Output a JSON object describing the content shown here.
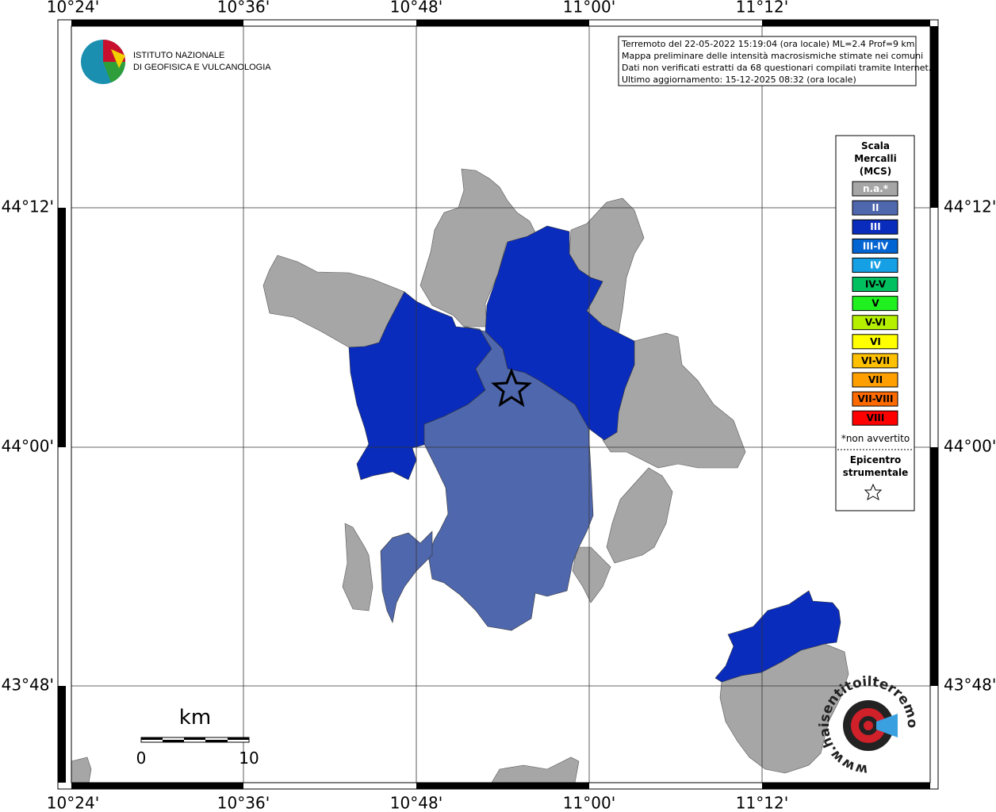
{
  "map": {
    "lon_labels": [
      "10°24'",
      "10°36'",
      "10°48'",
      "11°00'",
      "11°12'"
    ],
    "lat_labels": [
      "44°12'",
      "44°00'",
      "43°48'"
    ],
    "logo": {
      "line1": "ISTITUTO NAZIONALE",
      "line2": "DI GEOFISICA E VULCANOLOGIA"
    },
    "info": [
      "Terremoto del 22-05-2022 15:19:04 (ora locale) ML=2.4 Prof=9 km",
      "Mappa preliminare delle intensità macrosismiche stimate nei comuni",
      "Dati non verificati estratti da 68 questionari compilati tramite Internet.",
      "Ultimo aggiornamento: 15-12-2025 08:32 (ora locale)"
    ],
    "legend": {
      "title": [
        "Scala",
        "Mercalli",
        "(MCS)"
      ],
      "levels": [
        {
          "label": "n.a.*",
          "color": "#a6a6a6"
        },
        {
          "label": "II",
          "color": "#4f67ad"
        },
        {
          "label": "III",
          "color": "#0a2cbc"
        },
        {
          "label": "III-IV",
          "color": "#0064d2"
        },
        {
          "label": "IV",
          "color": "#15a0e6"
        },
        {
          "label": "IV-V",
          "color": "#00c060"
        },
        {
          "label": "V",
          "color": "#20f020"
        },
        {
          "label": "V-VI",
          "color": "#b4f000"
        },
        {
          "label": "VI",
          "color": "#ffff00"
        },
        {
          "label": "VI-VII",
          "color": "#ffc000"
        },
        {
          "label": "VII",
          "color": "#ffa000"
        },
        {
          "label": "VII-VIII",
          "color": "#ff6a00"
        },
        {
          "label": "VIII",
          "color": "#ff0000"
        }
      ],
      "note": "*non avvertito",
      "epicenter": [
        "Epicentro",
        "strumentale"
      ]
    },
    "scale_bar": {
      "unit": "km",
      "start": 0,
      "end": 10
    },
    "watermark": "www.haisentitoilterremoto.it"
  }
}
